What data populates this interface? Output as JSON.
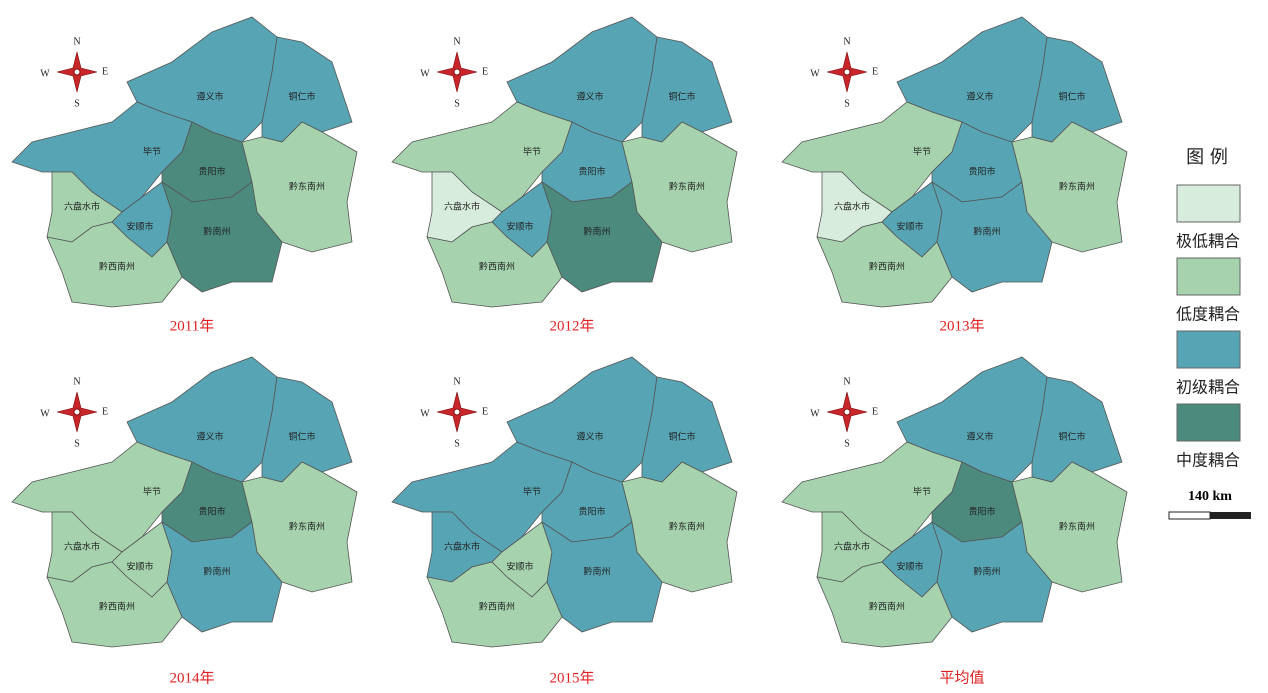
{
  "compass": {
    "n": "N",
    "s": "S",
    "w": "W",
    "e": "E"
  },
  "regions": [
    "遵义市",
    "铜仁市",
    "毕节",
    "贵阳市",
    "六盘水市",
    "安顺市",
    "黔南州",
    "黔东南州",
    "黔西南州"
  ],
  "legend": {
    "title": "图 例",
    "items": [
      {
        "label": "极低耦合",
        "color": "#d8ecdd"
      },
      {
        "label": "低度耦合",
        "color": "#a6d3ae"
      },
      {
        "label": "初级耦合",
        "color": "#57a5b4"
      },
      {
        "label": "中度耦合",
        "color": "#4b8a7d"
      }
    ]
  },
  "scale_bar": "140 km",
  "maps": [
    {
      "title": "2011年",
      "levels": [
        2,
        2,
        2,
        3,
        1,
        2,
        3,
        1,
        1
      ]
    },
    {
      "title": "2012年",
      "levels": [
        2,
        2,
        1,
        2,
        0,
        2,
        3,
        1,
        1
      ]
    },
    {
      "title": "2013年",
      "levels": [
        2,
        2,
        1,
        2,
        0,
        2,
        2,
        1,
        1
      ]
    },
    {
      "title": "2014年",
      "levels": [
        2,
        2,
        1,
        3,
        1,
        1,
        2,
        1,
        1
      ]
    },
    {
      "title": "2015年",
      "levels": [
        2,
        2,
        2,
        2,
        2,
        1,
        2,
        1,
        1
      ]
    },
    {
      "title": "平均值",
      "levels": [
        2,
        2,
        1,
        3,
        1,
        2,
        2,
        1,
        1
      ]
    }
  ]
}
